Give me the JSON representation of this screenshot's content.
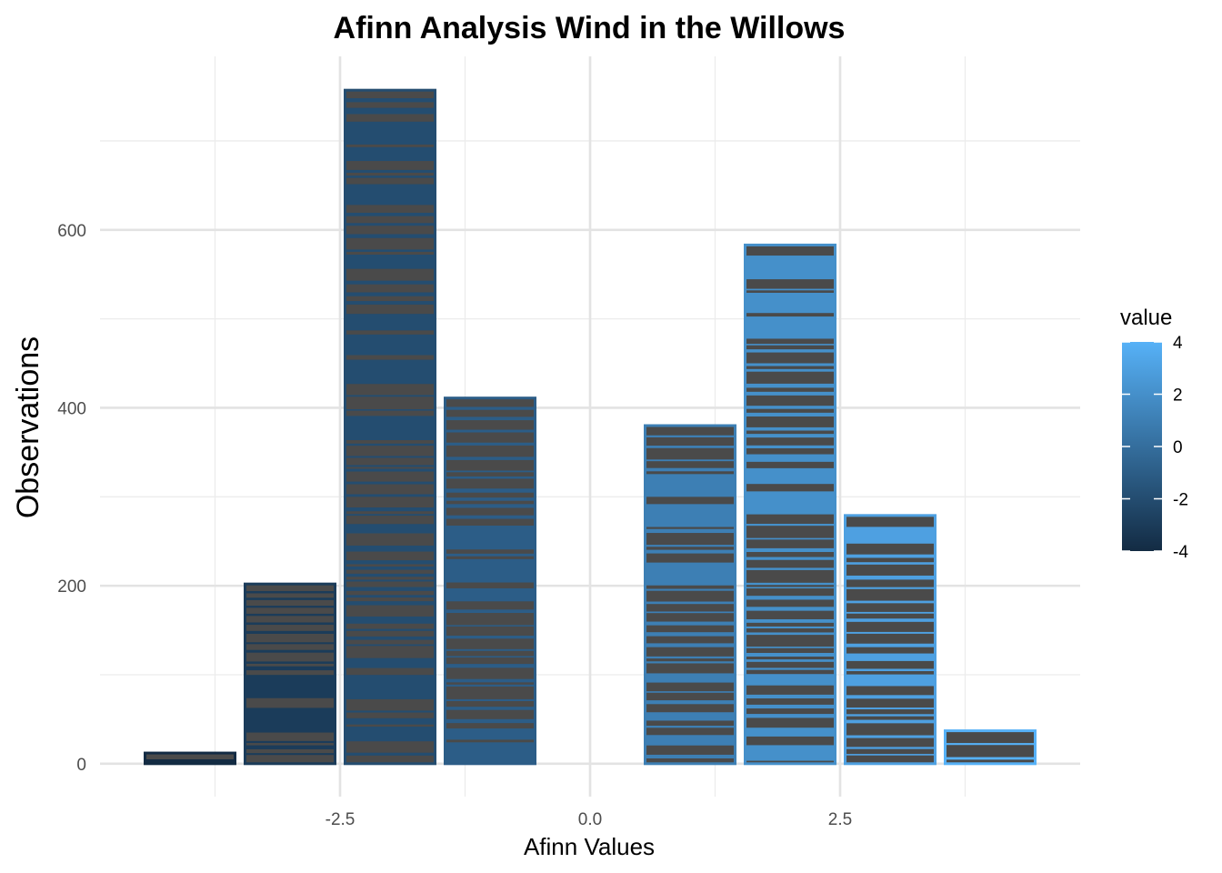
{
  "chart_data": {
    "type": "bar",
    "title": "Afinn Analysis Wind in the Willows",
    "xlabel": "Afinn Values",
    "ylabel": "Observations",
    "x": [
      -4,
      -3,
      -2,
      -1,
      1,
      2,
      3,
      4
    ],
    "values": [
      12,
      202,
      757,
      411,
      380,
      583,
      279,
      37
    ],
    "xlim": [
      -4.9,
      4.9
    ],
    "ylim": [
      -37,
      795
    ],
    "x_ticks": [
      -2.5,
      0.0,
      2.5
    ],
    "x_tick_labels": [
      "-2.5",
      "0.0",
      "2.5"
    ],
    "y_ticks": [
      0,
      200,
      400,
      600
    ],
    "y_tick_labels": [
      "0",
      "200",
      "400",
      "600"
    ],
    "grid": true,
    "bar_inner_fill": "#4a4a4a",
    "legend": {
      "title": "value",
      "position": "right",
      "type": "colorbar",
      "range": [
        -4,
        4
      ],
      "ticks": [
        4,
        2,
        0,
        -2,
        -4
      ],
      "tick_labels": [
        "4",
        "2",
        "0",
        "-2",
        "-4"
      ],
      "color_low": "#132b43",
      "color_high": "#56b1f7"
    }
  }
}
